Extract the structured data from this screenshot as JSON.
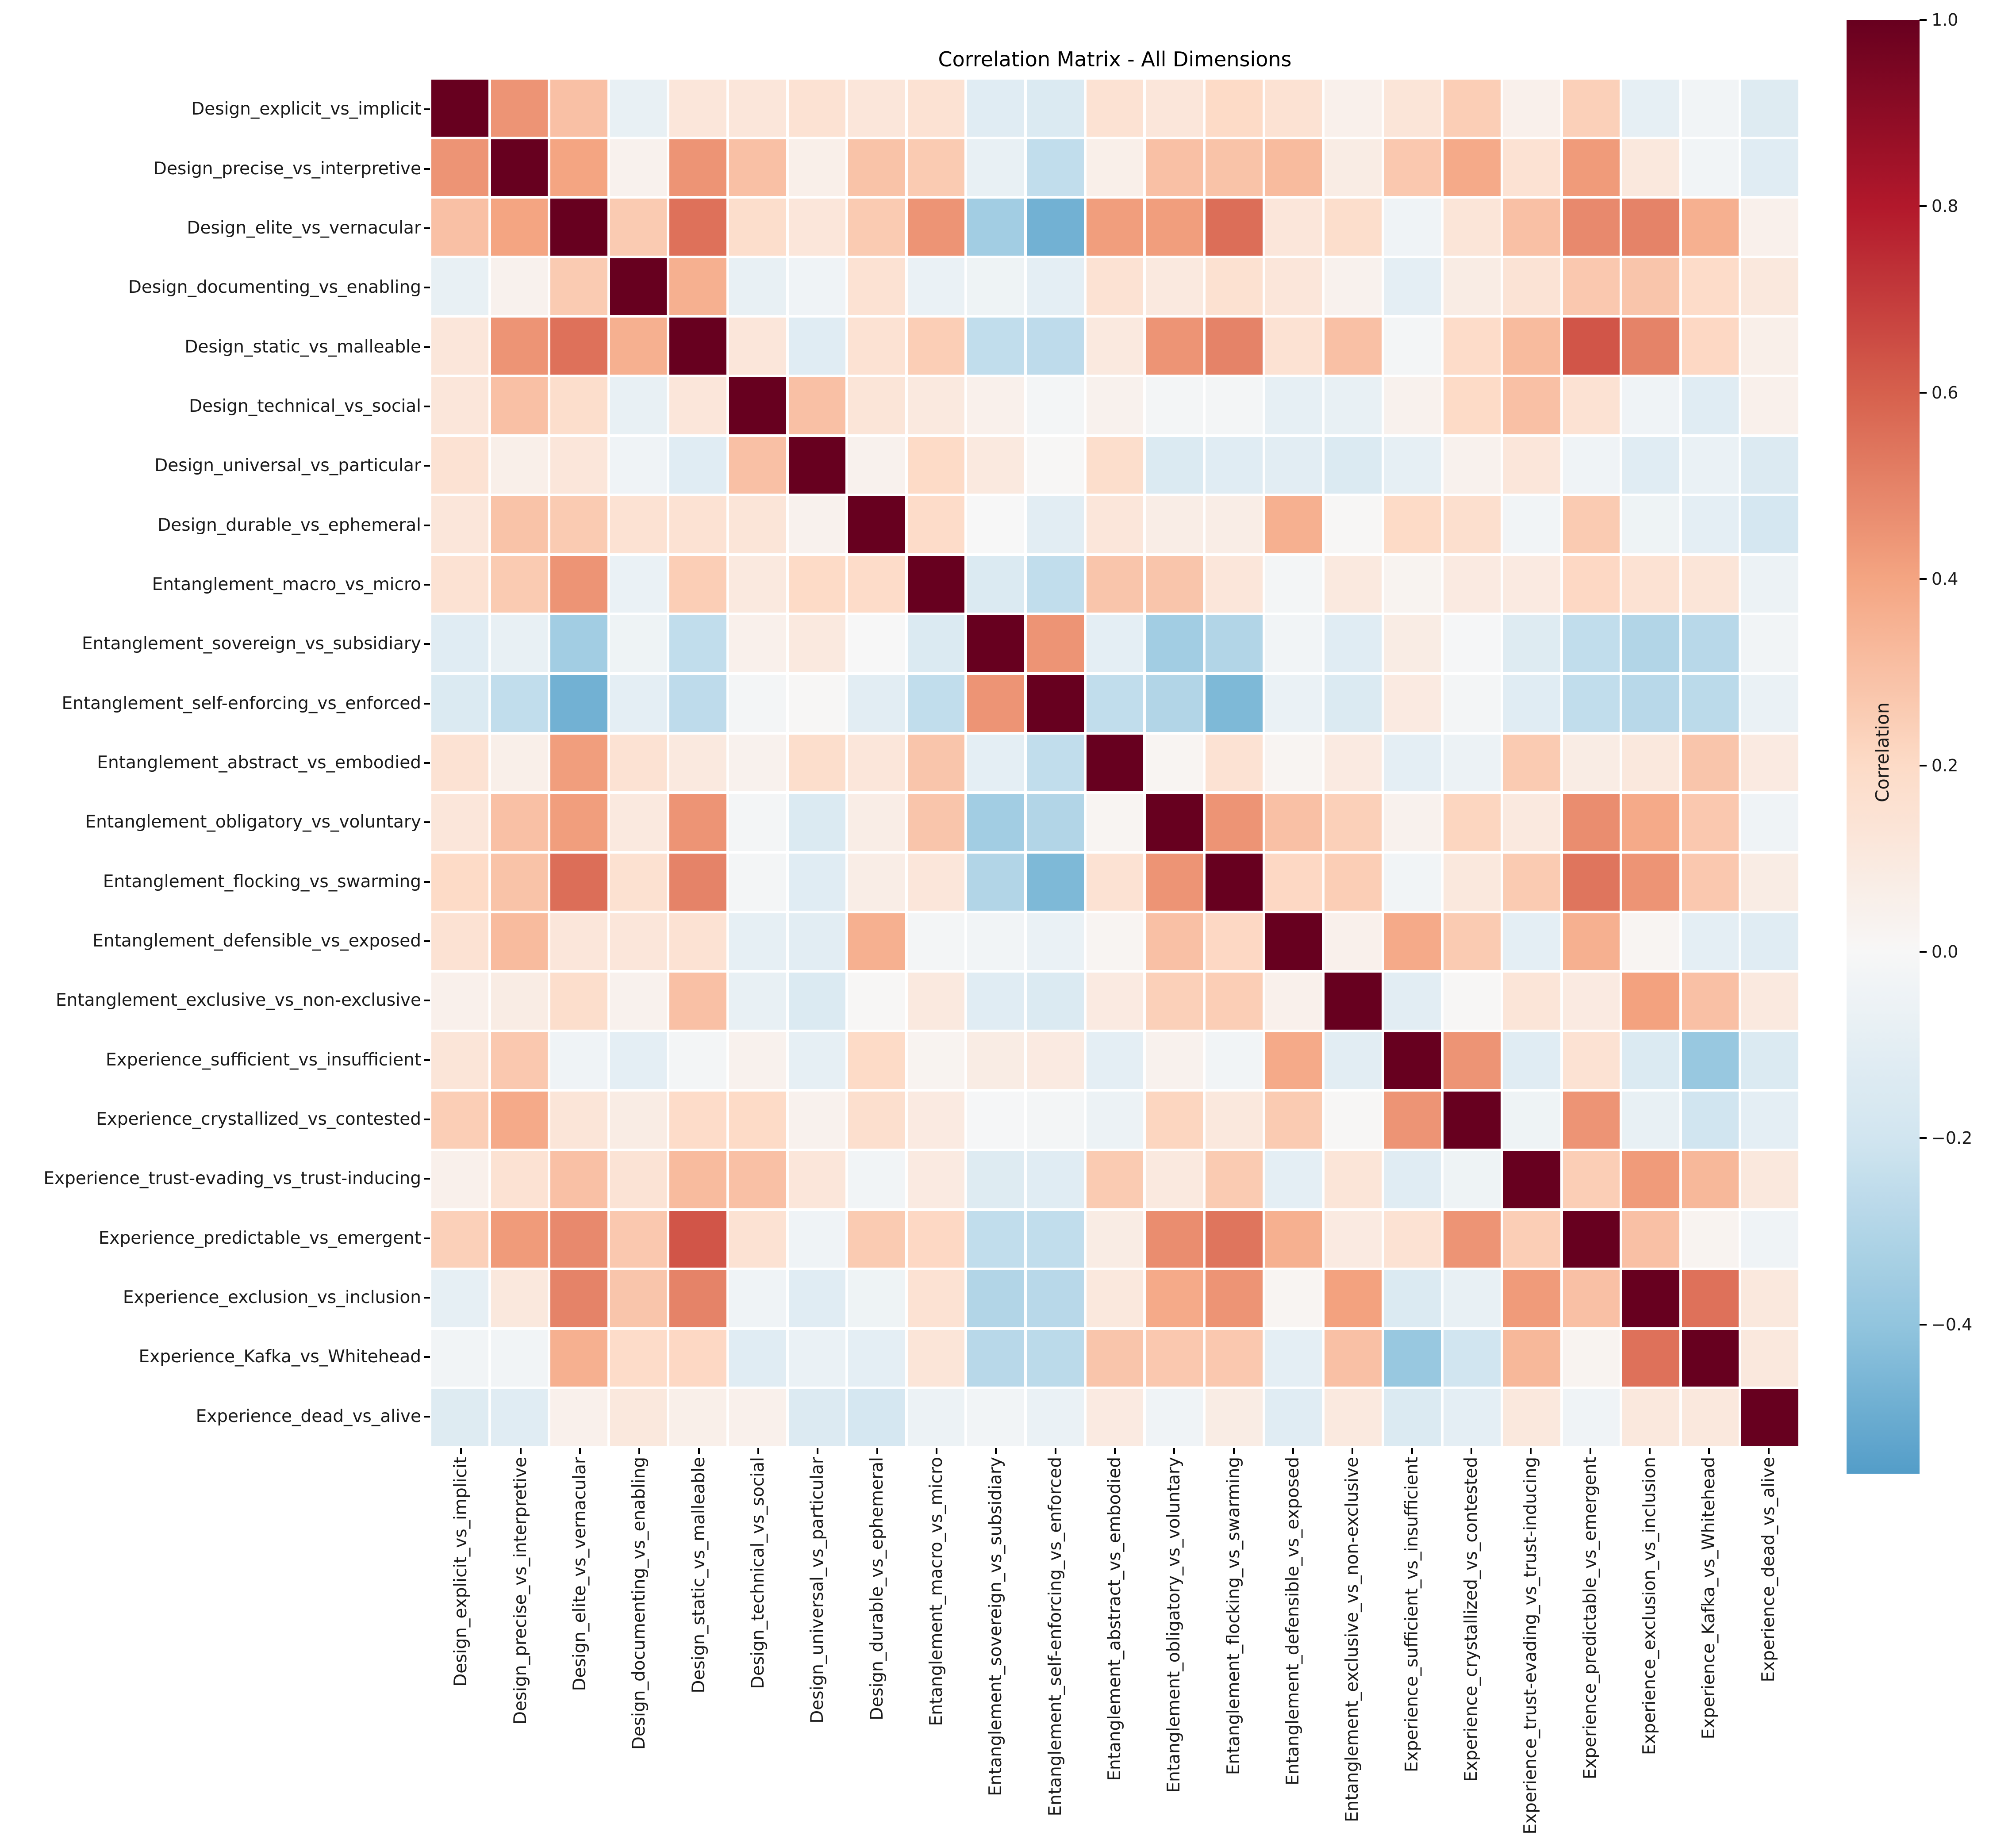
{
  "title": "Correlation Matrix - All Dimensions",
  "chart_data": {
    "type": "heatmap",
    "title": "Correlation Matrix - All Dimensions",
    "grid": false,
    "labels": [
      "Design_explicit_vs_implicit",
      "Design_precise_vs_interpretive",
      "Design_elite_vs_vernacular",
      "Design_documenting_vs_enabling",
      "Design_static_vs_malleable",
      "Design_technical_vs_social",
      "Design_universal_vs_particular",
      "Design_durable_vs_ephemeral",
      "Entanglement_macro_vs_micro",
      "Entanglement_sovereign_vs_subsidiary",
      "Entanglement_self-enforcing_vs_enforced",
      "Entanglement_abstract_vs_embodied",
      "Entanglement_obligatory_vs_voluntary",
      "Entanglement_flocking_vs_swarming",
      "Entanglement_defensible_vs_exposed",
      "Entanglement_exclusive_vs_non-exclusive",
      "Experience_sufficient_vs_insufficient",
      "Experience_crystallized_vs_contested",
      "Experience_trust-evading_vs_trust-inducing",
      "Experience_predictable_vs_emergent",
      "Experience_exclusion_vs_inclusion",
      "Experience_Kafka_vs_Whitehead",
      "Experience_dead_vs_alive"
    ],
    "matrix": [
      [
        1.0,
        0.45,
        0.3,
        -0.08,
        0.12,
        0.12,
        0.15,
        0.12,
        0.15,
        -0.12,
        -0.15,
        0.15,
        0.12,
        0.2,
        0.15,
        0.05,
        0.13,
        0.25,
        0.05,
        0.24,
        -0.09,
        -0.03,
        -0.13
      ],
      [
        0.45,
        1.0,
        0.4,
        0.04,
        0.45,
        0.3,
        0.06,
        0.29,
        0.26,
        -0.08,
        -0.25,
        0.06,
        0.3,
        0.29,
        0.32,
        0.08,
        0.27,
        0.38,
        0.15,
        0.43,
        0.11,
        -0.03,
        -0.12
      ],
      [
        0.3,
        0.4,
        1.0,
        0.26,
        0.55,
        0.18,
        0.12,
        0.26,
        0.45,
        -0.35,
        -0.48,
        0.42,
        0.42,
        0.56,
        0.12,
        0.18,
        -0.04,
        0.13,
        0.3,
        0.48,
        0.5,
        0.36,
        0.05
      ],
      [
        -0.08,
        0.04,
        0.26,
        1.0,
        0.36,
        -0.08,
        -0.04,
        0.15,
        -0.07,
        -0.05,
        -0.1,
        0.15,
        0.1,
        0.16,
        0.12,
        0.04,
        -0.1,
        0.08,
        0.14,
        0.27,
        0.28,
        0.19,
        0.11
      ],
      [
        0.12,
        0.45,
        0.55,
        0.36,
        1.0,
        0.12,
        -0.12,
        0.15,
        0.25,
        -0.25,
        -0.26,
        0.1,
        0.45,
        0.5,
        0.15,
        0.3,
        -0.02,
        0.19,
        0.32,
        0.63,
        0.5,
        0.21,
        0.06
      ],
      [
        0.12,
        0.3,
        0.18,
        -0.08,
        0.12,
        1.0,
        0.3,
        0.13,
        0.1,
        0.05,
        -0.02,
        0.04,
        -0.02,
        -0.02,
        -0.09,
        -0.08,
        0.04,
        0.2,
        0.3,
        0.15,
        -0.04,
        -0.12,
        0.05
      ],
      [
        0.15,
        0.06,
        0.12,
        -0.04,
        -0.12,
        0.3,
        1.0,
        0.04,
        0.2,
        0.1,
        0.01,
        0.18,
        -0.15,
        -0.12,
        -0.11,
        -0.15,
        -0.09,
        0.04,
        0.12,
        -0.04,
        -0.12,
        -0.07,
        -0.14
      ],
      [
        0.12,
        0.29,
        0.26,
        0.15,
        0.15,
        0.13,
        0.04,
        1.0,
        0.19,
        0.0,
        -0.11,
        0.12,
        0.07,
        0.07,
        0.36,
        0.01,
        0.2,
        0.17,
        -0.03,
        0.26,
        -0.05,
        -0.1,
        -0.18
      ],
      [
        0.15,
        0.26,
        0.45,
        -0.07,
        0.25,
        0.1,
        0.2,
        0.19,
        1.0,
        -0.15,
        -0.25,
        0.28,
        0.28,
        0.12,
        -0.02,
        0.1,
        0.03,
        0.09,
        0.09,
        0.21,
        0.15,
        0.13,
        -0.06
      ],
      [
        -0.12,
        -0.08,
        -0.35,
        -0.05,
        -0.25,
        0.05,
        0.1,
        0.0,
        -0.15,
        1.0,
        0.45,
        -0.1,
        -0.35,
        -0.3,
        -0.03,
        -0.12,
        0.08,
        -0.01,
        -0.13,
        -0.25,
        -0.3,
        -0.28,
        -0.03
      ],
      [
        -0.15,
        -0.25,
        -0.48,
        -0.1,
        -0.26,
        -0.02,
        0.01,
        -0.11,
        -0.25,
        0.45,
        1.0,
        -0.25,
        -0.3,
        -0.45,
        -0.07,
        -0.15,
        0.09,
        -0.02,
        -0.12,
        -0.25,
        -0.28,
        -0.27,
        -0.07
      ],
      [
        0.15,
        0.06,
        0.42,
        0.15,
        0.1,
        0.04,
        0.18,
        0.12,
        0.28,
        -0.1,
        -0.25,
        1.0,
        0.02,
        0.15,
        0.02,
        0.09,
        -0.1,
        -0.06,
        0.26,
        0.08,
        0.11,
        0.28,
        0.09
      ],
      [
        0.12,
        0.3,
        0.42,
        0.1,
        0.45,
        -0.02,
        -0.15,
        0.07,
        0.28,
        -0.35,
        -0.3,
        0.02,
        1.0,
        0.45,
        0.3,
        0.24,
        0.04,
        0.22,
        0.1,
        0.47,
        0.38,
        0.27,
        -0.04
      ],
      [
        0.2,
        0.29,
        0.56,
        0.16,
        0.5,
        -0.02,
        -0.12,
        0.07,
        0.12,
        -0.3,
        -0.45,
        0.15,
        0.45,
        1.0,
        0.21,
        0.25,
        -0.03,
        0.11,
        0.26,
        0.54,
        0.45,
        0.27,
        0.08
      ],
      [
        0.15,
        0.32,
        0.12,
        0.12,
        0.15,
        -0.09,
        -0.11,
        0.36,
        -0.02,
        -0.03,
        -0.07,
        0.02,
        0.3,
        0.21,
        1.0,
        0.05,
        0.38,
        0.26,
        -0.1,
        0.36,
        0.02,
        -0.1,
        -0.12
      ],
      [
        0.05,
        0.08,
        0.18,
        0.04,
        0.3,
        -0.08,
        -0.15,
        0.01,
        0.1,
        -0.12,
        -0.15,
        0.09,
        0.24,
        0.25,
        0.05,
        1.0,
        -0.11,
        0.01,
        0.13,
        0.09,
        0.41,
        0.3,
        0.1
      ],
      [
        0.13,
        0.27,
        -0.04,
        -0.1,
        -0.02,
        0.04,
        -0.09,
        0.2,
        0.03,
        0.08,
        0.09,
        -0.1,
        0.04,
        -0.03,
        0.38,
        -0.11,
        1.0,
        0.45,
        -0.12,
        0.15,
        -0.15,
        -0.38,
        -0.15
      ],
      [
        0.25,
        0.38,
        0.13,
        0.08,
        0.19,
        0.2,
        0.04,
        0.17,
        0.09,
        -0.01,
        -0.02,
        -0.06,
        0.22,
        0.11,
        0.26,
        0.01,
        0.45,
        1.0,
        -0.05,
        0.45,
        -0.08,
        -0.2,
        -0.1
      ],
      [
        0.05,
        0.15,
        0.3,
        0.14,
        0.32,
        0.3,
        0.12,
        -0.03,
        0.09,
        -0.13,
        -0.12,
        0.26,
        0.1,
        0.26,
        -0.1,
        0.13,
        -0.12,
        -0.05,
        1.0,
        0.25,
        0.43,
        0.33,
        0.11
      ],
      [
        0.24,
        0.43,
        0.48,
        0.27,
        0.63,
        0.15,
        -0.04,
        0.26,
        0.21,
        -0.25,
        -0.25,
        0.08,
        0.47,
        0.54,
        0.36,
        0.09,
        0.15,
        0.45,
        0.25,
        1.0,
        0.3,
        0.03,
        -0.04
      ],
      [
        -0.09,
        0.11,
        0.5,
        0.28,
        0.5,
        -0.04,
        -0.12,
        -0.05,
        0.15,
        -0.3,
        -0.28,
        0.11,
        0.38,
        0.45,
        0.02,
        0.41,
        -0.15,
        -0.08,
        0.43,
        0.3,
        1.0,
        0.55,
        0.11
      ],
      [
        -0.03,
        -0.03,
        0.36,
        0.19,
        0.21,
        -0.12,
        -0.07,
        -0.1,
        0.13,
        -0.28,
        -0.27,
        0.28,
        0.27,
        0.27,
        -0.1,
        0.3,
        -0.38,
        -0.2,
        0.33,
        0.03,
        0.55,
        1.0,
        0.11
      ],
      [
        -0.13,
        -0.12,
        0.05,
        0.11,
        0.06,
        0.05,
        -0.14,
        -0.18,
        -0.06,
        -0.03,
        -0.07,
        0.09,
        -0.04,
        0.08,
        -0.12,
        0.1,
        -0.15,
        -0.1,
        0.11,
        -0.04,
        0.11,
        0.11,
        1.0
      ]
    ],
    "colorbar": {
      "label": "Correlation",
      "tick_labels": [
        "1.0",
        "0.8",
        "0.6",
        "0.4",
        "0.2",
        "0.0",
        "−0.2",
        "−0.4"
      ],
      "tick_values": [
        1.0,
        0.8,
        0.6,
        0.4,
        0.2,
        0.0,
        -0.2,
        -0.4
      ],
      "vmax": 1.0,
      "vmin": -0.56,
      "position": "right"
    },
    "colormap": {
      "name": "RdBu_r",
      "stops": [
        {
          "v": -1.0,
          "c": "#053061"
        },
        {
          "v": -0.8,
          "c": "#2166ac"
        },
        {
          "v": -0.6,
          "c": "#4393c3"
        },
        {
          "v": -0.4,
          "c": "#92c5de"
        },
        {
          "v": -0.2,
          "c": "#d1e5f0"
        },
        {
          "v": 0.0,
          "c": "#f7f7f7"
        },
        {
          "v": 0.2,
          "c": "#fddbc7"
        },
        {
          "v": 0.4,
          "c": "#f4a582"
        },
        {
          "v": 0.6,
          "c": "#d6604d"
        },
        {
          "v": 0.8,
          "c": "#b2182b"
        },
        {
          "v": 1.0,
          "c": "#67001f"
        }
      ]
    }
  }
}
